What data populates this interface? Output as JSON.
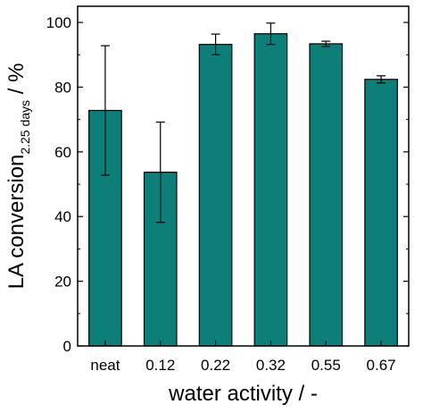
{
  "chart_data": {
    "type": "bar",
    "title": "",
    "xlabel": "water activity / -",
    "ylabel": {
      "main": "LA conversion",
      "subscript": "2.25 days",
      "suffix": " / %"
    },
    "categories": [
      "neat",
      "0.12",
      "0.22",
      "0.32",
      "0.55",
      "0.67"
    ],
    "values": [
      72.8,
      53.7,
      93.2,
      96.5,
      93.4,
      82.4
    ],
    "errors": [
      20.0,
      15.5,
      3.2,
      3.3,
      0.8,
      1.1
    ],
    "ylim": [
      0,
      105
    ],
    "yticks": [
      0,
      20,
      40,
      60,
      80,
      100
    ],
    "grid": false,
    "colors": {
      "bar": "#0e7e78",
      "bar_edge": "#000000",
      "axis": "#000000"
    }
  }
}
